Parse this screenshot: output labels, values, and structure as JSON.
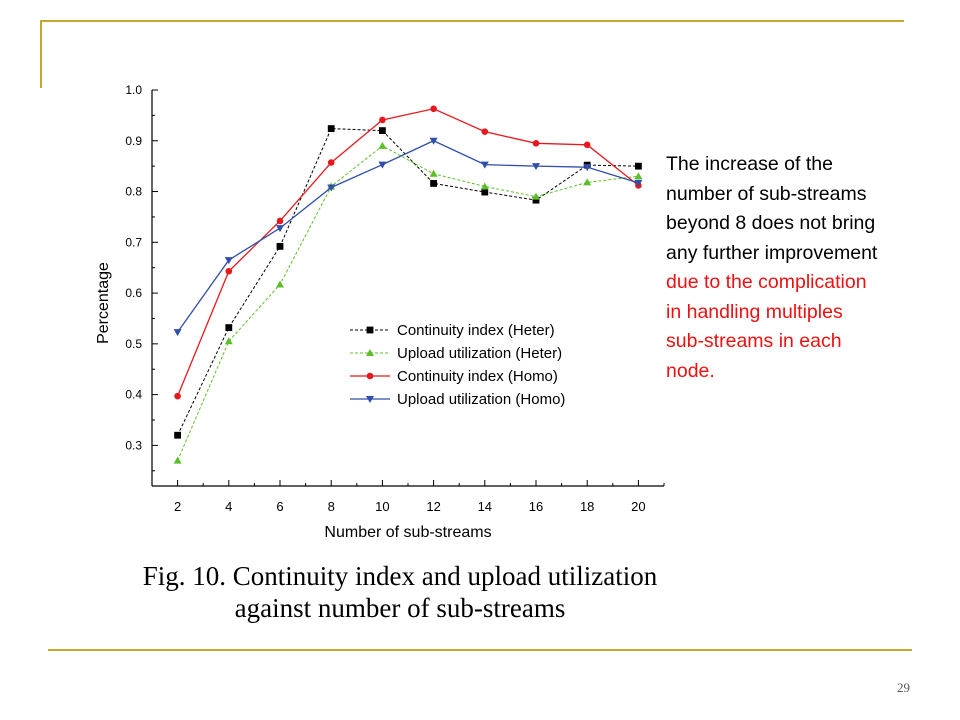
{
  "slide": {
    "number": "29",
    "accent_color": "#c8a82c",
    "caption": {
      "line1": "Fig. 10. Continuity index and upload utilization",
      "line2": "against number of sub-streams"
    },
    "note": {
      "lines": [
        {
          "text": "The increase of the",
          "color": "#000000"
        },
        {
          "text": "number of sub-streams",
          "color": "#000000"
        },
        {
          "text": "beyond 8 does not bring",
          "color": "#000000"
        },
        {
          "text": "any further improvement",
          "color": "#000000"
        },
        {
          "text": "due to the complication",
          "color": "#ee1111"
        },
        {
          "text": "in handling multiples",
          "color": "#ee1111"
        },
        {
          "text": "sub-streams in each",
          "color": "#ee1111"
        },
        {
          "text": "node.",
          "color": "#ee1111"
        }
      ]
    }
  },
  "chart_data": {
    "type": "line",
    "title": "",
    "xlabel": "Number of sub-streams",
    "ylabel": "Percentage",
    "xlim": [
      1,
      21
    ],
    "ylim": [
      0.22,
      1.0
    ],
    "x": [
      2,
      4,
      6,
      8,
      10,
      12,
      14,
      16,
      18,
      20
    ],
    "x_ticks": [
      "2",
      "4",
      "6",
      "8",
      "10",
      "12",
      "14",
      "16",
      "18",
      "20"
    ],
    "y_ticks": [
      "0.3",
      "0.4",
      "0.5",
      "0.6",
      "0.7",
      "0.8",
      "0.9",
      "1.0"
    ],
    "y_tick_values": [
      0.3,
      0.4,
      0.5,
      0.6,
      0.7,
      0.8,
      0.9,
      1.0
    ],
    "grid": false,
    "legend_position": "center-right",
    "series": [
      {
        "name": "Continuity index (Heter)",
        "color": "#000000",
        "marker": "square",
        "dash": true,
        "values": [
          0.32,
          0.532,
          0.692,
          0.924,
          0.92,
          0.816,
          0.799,
          0.783,
          0.852,
          0.85
        ]
      },
      {
        "name": "Upload utilization (Heter)",
        "color": "#5cbf2a",
        "marker": "triangle-up",
        "dash": true,
        "values": [
          0.27,
          0.505,
          0.617,
          0.81,
          0.89,
          0.835,
          0.81,
          0.79,
          0.818,
          0.83
        ]
      },
      {
        "name": "Continuity index (Homo)",
        "color": "#e8191e",
        "marker": "circle",
        "dash": false,
        "values": [
          0.397,
          0.643,
          0.742,
          0.857,
          0.941,
          0.963,
          0.918,
          0.895,
          0.892,
          0.812
        ]
      },
      {
        "name": "Upload utilization (Homo)",
        "color": "#2f4fa8",
        "marker": "triangle-down",
        "dash": false,
        "values": [
          0.523,
          0.665,
          0.728,
          0.808,
          0.853,
          0.9,
          0.853,
          0.85,
          0.848,
          0.817
        ]
      }
    ]
  }
}
